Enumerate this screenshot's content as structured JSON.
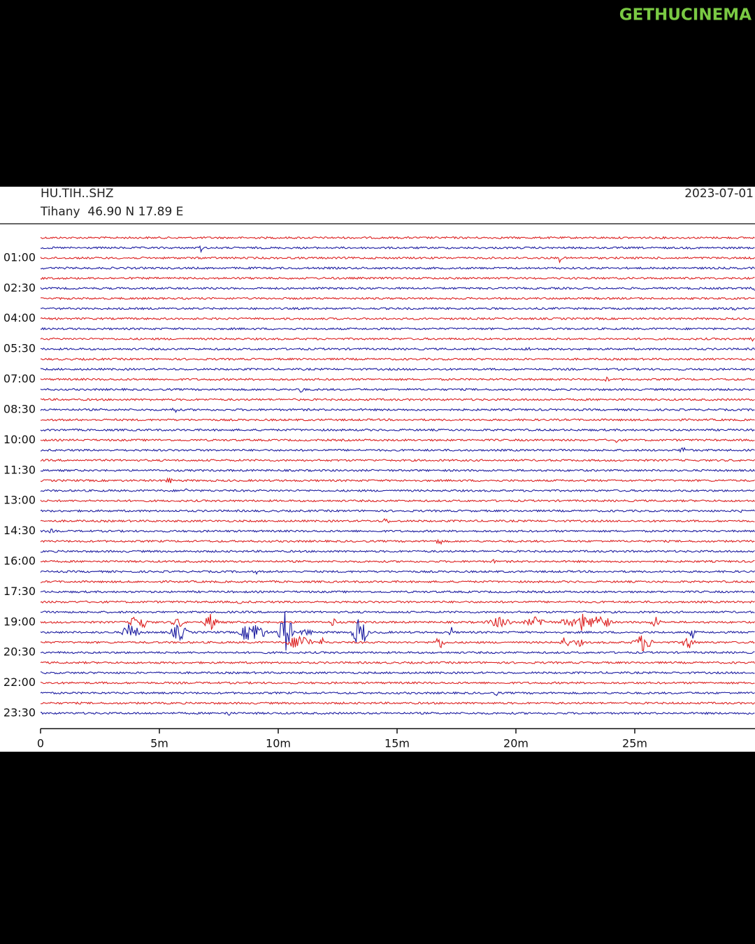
{
  "watermark": "GETHUCINEMA",
  "chart_data": {
    "type": "helicorder",
    "title": "HU.TIH..SHZ",
    "subtitle": "Tihany  46.90 N 17.89 E",
    "date": "2023-07-01",
    "categories": [
      null,
      null,
      "01:00",
      null,
      null,
      "02:30",
      null,
      null,
      "04:00",
      null,
      null,
      "05:30",
      null,
      null,
      "07:00",
      null,
      null,
      "08:30",
      null,
      null,
      "10:00",
      null,
      null,
      "11:30",
      null,
      null,
      "13:00",
      null,
      null,
      "14:30",
      null,
      null,
      "16:00",
      null,
      null,
      "17:30",
      null,
      null,
      "19:00",
      null,
      null,
      "20:30",
      null,
      null,
      "22:00",
      null,
      null,
      "23:30"
    ],
    "colors": [
      "#dc2020",
      "#1c1ca0"
    ],
    "xlim": [
      0,
      30
    ],
    "xticks": [
      {
        "value": 0,
        "label": "0"
      },
      {
        "value": 5,
        "label": "5m"
      },
      {
        "value": 10,
        "label": "10m"
      },
      {
        "value": 15,
        "label": "15m"
      },
      {
        "value": 20,
        "label": "20m"
      },
      {
        "value": 25,
        "label": "25m"
      }
    ]
  }
}
